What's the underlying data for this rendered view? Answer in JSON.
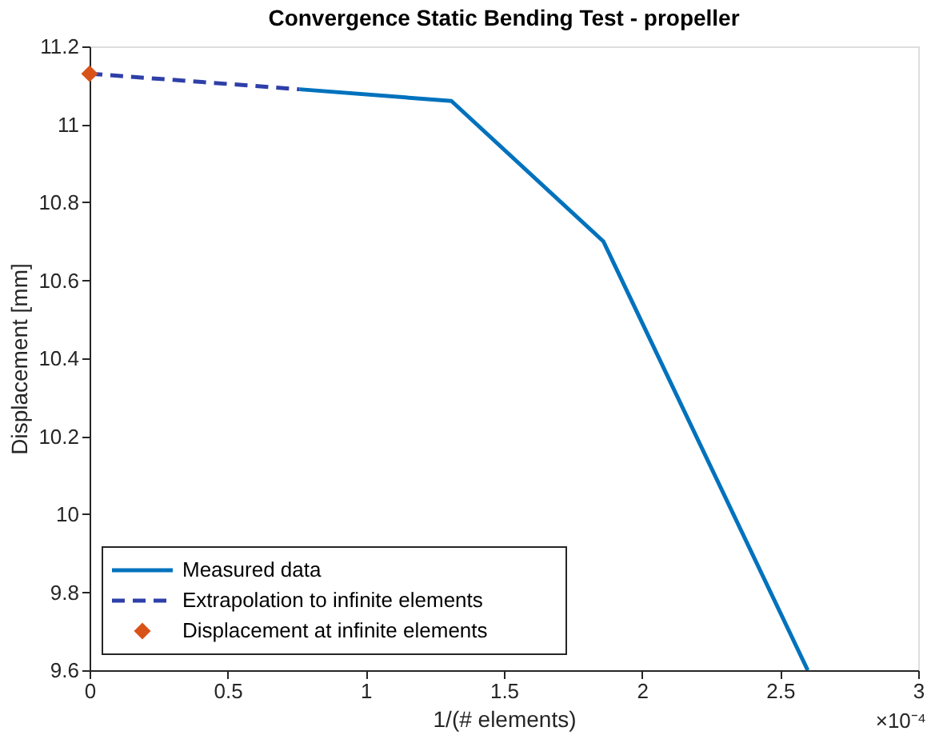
{
  "chart_data": {
    "type": "line",
    "title": "Convergence Static Bending Test - propeller",
    "xlabel": "1/(# elements)",
    "ylabel": "Displacement [mm]",
    "series": [
      {
        "name": "Measured data",
        "color": "#0072bd",
        "x": [
          0.76,
          1.31,
          1.86,
          2.6
        ],
        "values": [
          11.09,
          11.06,
          10.7,
          9.6
        ],
        "line_style": "solid"
      },
      {
        "name": "Extrapolation to infinite elements",
        "color": "#2e3fa8",
        "x": [
          0,
          0.76
        ],
        "values": [
          11.13,
          11.09
        ],
        "line_style": "dashed"
      },
      {
        "name": "Displacement at infinite elements",
        "type": "scatter",
        "color": "#d95319",
        "x": [
          0
        ],
        "values": [
          11.13
        ],
        "marker": "diamond"
      }
    ],
    "xlim": [
      0,
      3
    ],
    "xticks": [
      0,
      0.5,
      1,
      1.5,
      2,
      2.5,
      3
    ],
    "ylim": [
      9.6,
      11.2
    ],
    "yticks": [
      9.6,
      9.8,
      10,
      10.2,
      10.4,
      10.6,
      10.8,
      11,
      11.2
    ],
    "annotations": [
      "×10⁻⁴"
    ],
    "grid": false,
    "legend": "bottom left"
  }
}
